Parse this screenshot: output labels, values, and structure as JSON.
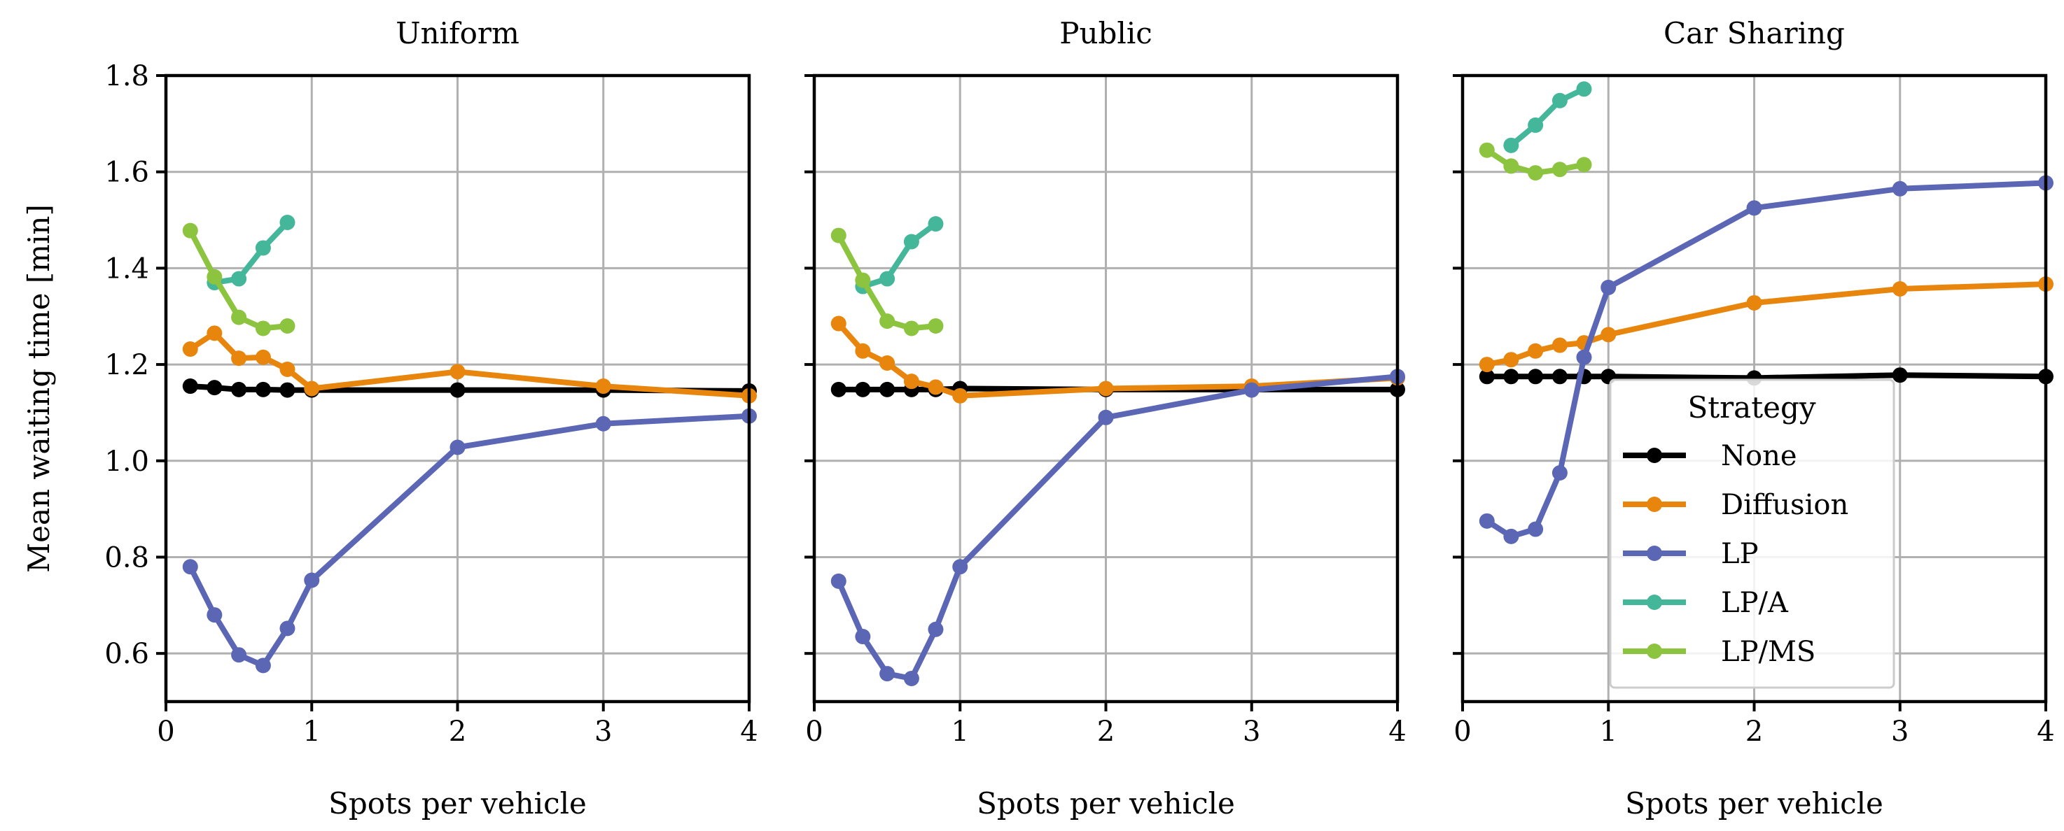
{
  "chart_data": [
    {
      "type": "line",
      "title": "Uniform",
      "xlabel": "Spots per vehicle",
      "ylabel": "Mean waiting time [min]",
      "xlim": [
        0,
        4
      ],
      "ylim": [
        0.5,
        1.8
      ],
      "grid": true,
      "series": [
        {
          "name": "None",
          "x": [
            0.167,
            0.333,
            0.5,
            0.667,
            0.833,
            1,
            2,
            3,
            4
          ],
          "y": [
            1.155,
            1.152,
            1.148,
            1.148,
            1.147,
            1.147,
            1.147,
            1.147,
            1.145
          ]
        },
        {
          "name": "Diffusion",
          "x": [
            0.167,
            0.333,
            0.5,
            0.667,
            0.833,
            1,
            2,
            3,
            4
          ],
          "y": [
            1.232,
            1.265,
            1.213,
            1.215,
            1.19,
            1.15,
            1.185,
            1.155,
            1.135
          ]
        },
        {
          "name": "LP",
          "x": [
            0.167,
            0.333,
            0.5,
            0.667,
            0.833,
            1,
            2,
            3,
            4
          ],
          "y": [
            0.78,
            0.68,
            0.597,
            0.575,
            0.652,
            0.752,
            1.028,
            1.077,
            1.093
          ]
        },
        {
          "name": "LP/A",
          "x": [
            0.333,
            0.5,
            0.667,
            0.833
          ],
          "y": [
            1.37,
            1.378,
            1.442,
            1.495
          ]
        },
        {
          "name": "LP/MS",
          "x": [
            0.167,
            0.333,
            0.5,
            0.667,
            0.833
          ],
          "y": [
            1.478,
            1.382,
            1.298,
            1.275,
            1.28
          ]
        }
      ]
    },
    {
      "type": "line",
      "title": "Public",
      "xlabel": "Spots per vehicle",
      "ylabel": "",
      "xlim": [
        0,
        4
      ],
      "ylim": [
        0.5,
        1.8
      ],
      "grid": true,
      "series": [
        {
          "name": "None",
          "x": [
            0.167,
            0.333,
            0.5,
            0.667,
            0.833,
            1,
            2,
            3,
            4
          ],
          "y": [
            1.148,
            1.148,
            1.148,
            1.148,
            1.148,
            1.15,
            1.148,
            1.148,
            1.148
          ]
        },
        {
          "name": "Diffusion",
          "x": [
            0.167,
            0.333,
            0.5,
            0.667,
            0.833,
            1,
            2,
            3,
            4
          ],
          "y": [
            1.285,
            1.228,
            1.203,
            1.165,
            1.153,
            1.135,
            1.15,
            1.155,
            1.172
          ]
        },
        {
          "name": "LP",
          "x": [
            0.167,
            0.333,
            0.5,
            0.667,
            0.833,
            1,
            2,
            3,
            4
          ],
          "y": [
            0.75,
            0.635,
            0.558,
            0.548,
            0.65,
            0.78,
            1.09,
            1.147,
            1.175
          ]
        },
        {
          "name": "LP/A",
          "x": [
            0.333,
            0.5,
            0.667,
            0.833
          ],
          "y": [
            1.362,
            1.378,
            1.455,
            1.492
          ]
        },
        {
          "name": "LP/MS",
          "x": [
            0.167,
            0.333,
            0.5,
            0.667,
            0.833
          ],
          "y": [
            1.468,
            1.375,
            1.29,
            1.275,
            1.28
          ]
        }
      ]
    },
    {
      "type": "line",
      "title": "Car Sharing",
      "xlabel": "Spots per vehicle",
      "ylabel": "",
      "xlim": [
        0,
        4
      ],
      "ylim": [
        0.5,
        1.8
      ],
      "grid": true,
      "legend": {
        "title": "Strategy",
        "placement": "lower-center",
        "entries": [
          "None",
          "Diffusion",
          "LP",
          "LP/A",
          "LP/MS"
        ]
      },
      "series": [
        {
          "name": "None",
          "x": [
            0.167,
            0.333,
            0.5,
            0.667,
            0.833,
            1,
            2,
            3,
            4
          ],
          "y": [
            1.175,
            1.175,
            1.175,
            1.175,
            1.175,
            1.175,
            1.172,
            1.178,
            1.175
          ]
        },
        {
          "name": "Diffusion",
          "x": [
            0.167,
            0.333,
            0.5,
            0.667,
            0.833,
            1,
            2,
            3,
            4
          ],
          "y": [
            1.2,
            1.21,
            1.228,
            1.24,
            1.245,
            1.262,
            1.328,
            1.357,
            1.367
          ]
        },
        {
          "name": "LP",
          "x": [
            0.167,
            0.333,
            0.5,
            0.667,
            0.833,
            1,
            2,
            3,
            4
          ],
          "y": [
            0.875,
            0.843,
            0.858,
            0.975,
            1.215,
            1.36,
            1.525,
            1.565,
            1.577
          ]
        },
        {
          "name": "LP/A",
          "x": [
            0.333,
            0.5,
            0.667,
            0.833
          ],
          "y": [
            1.655,
            1.697,
            1.748,
            1.772
          ]
        },
        {
          "name": "LP/MS",
          "x": [
            0.167,
            0.333,
            0.5,
            0.667,
            0.833
          ],
          "y": [
            1.645,
            1.612,
            1.598,
            1.605,
            1.615
          ]
        }
      ]
    }
  ],
  "colors": {
    "None": "#000000",
    "Diffusion": "#e8850c",
    "LP": "#5b67b5",
    "LP/A": "#44b79b",
    "LP/MS": "#8cc43f",
    "grid": "#b0b0b0"
  },
  "x_ticks": [
    0,
    1,
    2,
    3,
    4
  ],
  "x_tick_labels": [
    "0",
    "1",
    "2",
    "3",
    "4"
  ],
  "y_ticks": [
    0.6,
    0.8,
    1.0,
    1.2,
    1.4,
    1.6,
    1.8
  ],
  "y_tick_labels": [
    "0.6",
    "0.8",
    "1.0",
    "1.2",
    "1.4",
    "1.6",
    "1.8"
  ]
}
